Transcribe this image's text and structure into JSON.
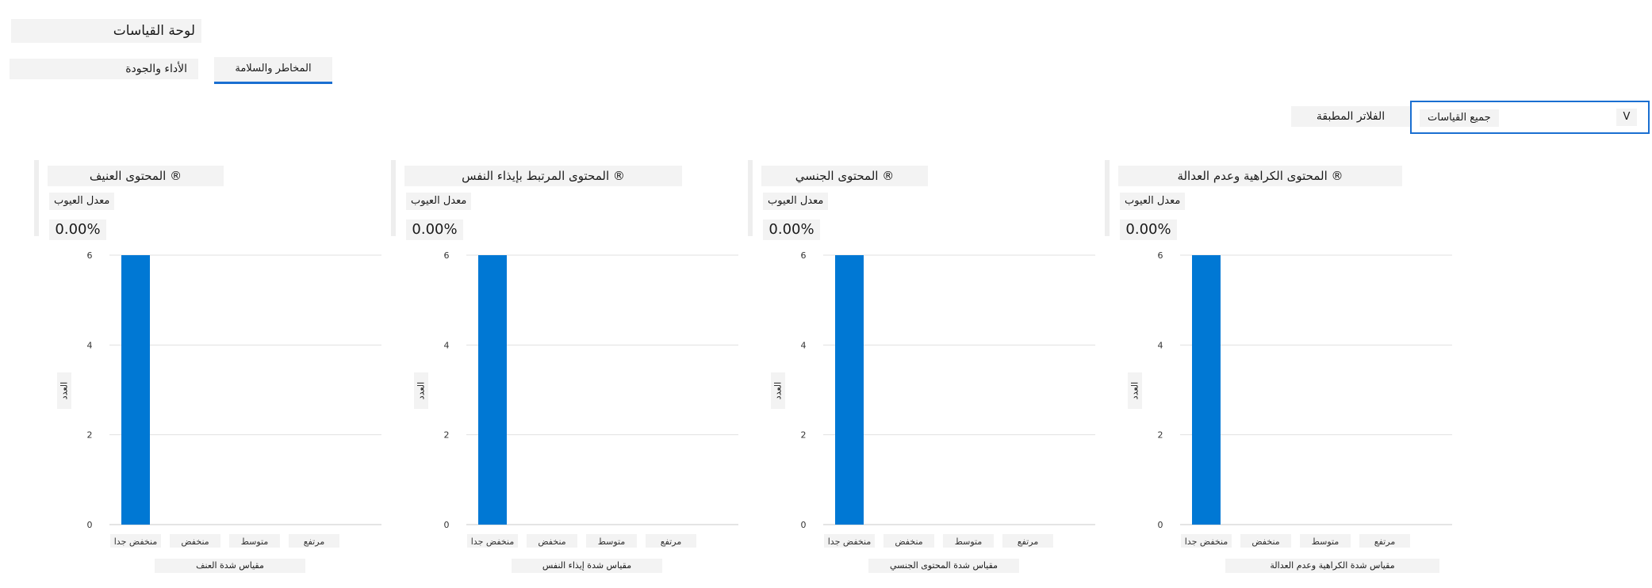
{
  "header": {
    "title": "لوحة القياسات"
  },
  "tabs": [
    {
      "label": "الأداء والجودة",
      "active": false
    },
    {
      "label": "المخاطر والسلامة",
      "active": true
    }
  ],
  "filters": {
    "label": "الفلاتر المطبقة",
    "dropdown_value": "جميع القياسات",
    "dropdown_icon": "chevron-down-icon",
    "chevron_glyph": "V"
  },
  "colors": {
    "accent": "#1a6fd1",
    "bar": "#0078d4",
    "grid": "#e1e1e1"
  },
  "metric_label": "معدل العيوب",
  "chart_data": [
    {
      "type": "bar",
      "title": "المحتوى العنيف ®",
      "metric_value": "0.00%",
      "categories": [
        "منخفض جدا",
        "منخفض",
        "متوسط",
        "مرتفع"
      ],
      "values": [
        6,
        0,
        0,
        0
      ],
      "xlabel": "مقياس شدة العنف",
      "ylabel": "العدد",
      "ylim": [
        0,
        6
      ],
      "yticks": [
        "0",
        "2",
        "4",
        "6"
      ],
      "grid": true
    },
    {
      "type": "bar",
      "title": "المحتوى المرتبط بإيذاء النفس ®",
      "metric_value": "0.00%",
      "categories": [
        "منخفض جدا",
        "منخفض",
        "متوسط",
        "مرتفع"
      ],
      "values": [
        6,
        0,
        0,
        0
      ],
      "xlabel": "مقياس شدة إيذاء النفس",
      "ylabel": "العدد",
      "ylim": [
        0,
        6
      ],
      "yticks": [
        "0",
        "2",
        "4",
        "6"
      ],
      "grid": true
    },
    {
      "type": "bar",
      "title": "المحتوى الجنسي ®",
      "metric_value": "0.00%",
      "categories": [
        "منخفض جدا",
        "منخفض",
        "متوسط",
        "مرتفع"
      ],
      "values": [
        6,
        0,
        0,
        0
      ],
      "xlabel": "مقياس شدة المحتوى الجنسي",
      "ylabel": "العدد",
      "ylim": [
        0,
        6
      ],
      "yticks": [
        "0",
        "2",
        "4",
        "6"
      ],
      "grid": true
    },
    {
      "type": "bar",
      "title": "المحتوى الكراهية وعدم العدالة ®",
      "metric_value": "0.00%",
      "categories": [
        "منخفض جدا",
        "منخفض",
        "متوسط",
        "مرتفع"
      ],
      "values": [
        6,
        0,
        0,
        0
      ],
      "xlabel": "مقياس شدة الكراهية وعدم العدالة",
      "ylabel": "العدد",
      "ylim": [
        0,
        6
      ],
      "yticks": [
        "0",
        "2",
        "4",
        "6"
      ],
      "grid": true
    }
  ]
}
